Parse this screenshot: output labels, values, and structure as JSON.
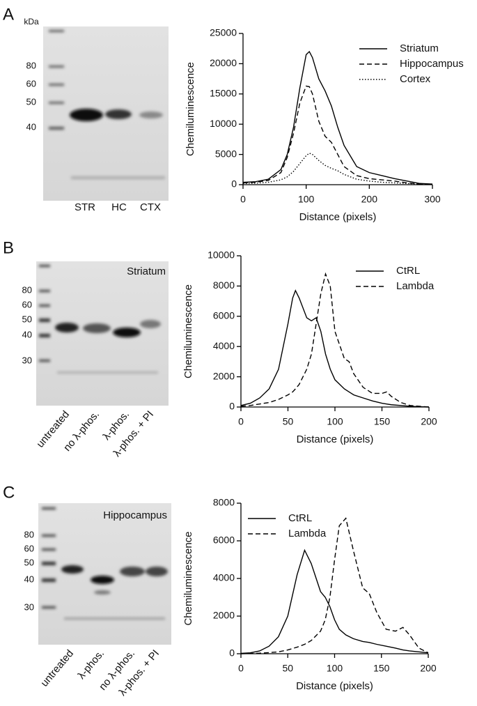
{
  "panel_labels": [
    "A",
    "B",
    "C"
  ],
  "blots": [
    {
      "unit": "kDa",
      "marker_labels": [
        "80",
        "60",
        "50",
        "40"
      ],
      "lane_labels": [
        "STR",
        "HC",
        "CTX"
      ]
    },
    {
      "title": "Striatum",
      "marker_labels": [
        "80",
        "60",
        "50",
        "40",
        "30"
      ],
      "lane_labels": [
        "untreated",
        "no λ-phos.",
        "λ-phos.",
        "λ-phos. + PI"
      ]
    },
    {
      "title": "Hippocampus",
      "marker_labels": [
        "80",
        "60",
        "50",
        "40",
        "30"
      ],
      "lane_labels": [
        "untreated",
        "λ-phos.",
        "no λ-phos.",
        "λ-phos. + PI"
      ]
    }
  ],
  "chart_data": [
    {
      "type": "line",
      "x_label": "Distance (pixels)",
      "y_label": "Chemiluminescence",
      "xlim": [
        0,
        300
      ],
      "xticks": [
        0,
        100,
        200,
        300
      ],
      "ylim": [
        0,
        25000
      ],
      "yticks": [
        0,
        5000,
        10000,
        15000,
        20000,
        25000
      ],
      "legend": "upper right",
      "x": [
        0,
        20,
        40,
        60,
        70,
        80,
        90,
        100,
        105,
        110,
        120,
        130,
        140,
        150,
        160,
        180,
        200,
        220,
        240,
        260,
        280,
        300
      ],
      "series": [
        {
          "name": "Striatum",
          "color": "#000000",
          "dash": "solid",
          "values": [
            400,
            500,
            900,
            2500,
            5000,
            9500,
            16000,
            21500,
            22000,
            21000,
            17500,
            15500,
            13000,
            9500,
            6500,
            3000,
            2000,
            1500,
            1000,
            600,
            200,
            100
          ]
        },
        {
          "name": "Hippocampus",
          "color": "#000000",
          "dash": "dashed",
          "values": [
            300,
            400,
            700,
            2000,
            4500,
            8500,
            13500,
            16300,
            16200,
            15000,
            10500,
            8000,
            7000,
            5000,
            3000,
            1500,
            1000,
            800,
            600,
            300,
            100,
            50
          ]
        },
        {
          "name": "Cortex",
          "color": "#000000",
          "dash": "dotted",
          "values": [
            200,
            250,
            400,
            800,
            1300,
            2200,
            3500,
            4800,
            5200,
            5000,
            4000,
            3200,
            2700,
            2300,
            1700,
            900,
            600,
            400,
            300,
            200,
            100,
            50
          ]
        }
      ]
    },
    {
      "type": "line",
      "x_label": "Distance (pixels)",
      "y_label": "Chemiluminescence",
      "xlim": [
        0,
        200
      ],
      "xticks": [
        0,
        50,
        100,
        150,
        200
      ],
      "ylim": [
        0,
        10000
      ],
      "yticks": [
        0,
        2000,
        4000,
        6000,
        8000,
        10000
      ],
      "legend": "upper right",
      "x": [
        0,
        10,
        20,
        30,
        40,
        50,
        55,
        58,
        62,
        70,
        75,
        80,
        85,
        90,
        95,
        100,
        110,
        115,
        120,
        130,
        140,
        150,
        155,
        160,
        170,
        180,
        190,
        200
      ],
      "series": [
        {
          "name": "CtRL",
          "color": "#000000",
          "dash": "solid",
          "values": [
            100,
            250,
            600,
            1200,
            2500,
            5500,
            7200,
            7700,
            7200,
            5900,
            5700,
            5900,
            5000,
            3500,
            2500,
            1800,
            1200,
            1000,
            800,
            600,
            400,
            250,
            200,
            150,
            100,
            50,
            20,
            0
          ]
        },
        {
          "name": "Lambda",
          "color": "#000000",
          "dash": "dashed",
          "values": [
            50,
            100,
            200,
            300,
            500,
            800,
            1000,
            1200,
            1500,
            2500,
            3500,
            5500,
            7500,
            8800,
            8000,
            5000,
            3200,
            3000,
            2200,
            1300,
            900,
            900,
            1000,
            700,
            300,
            100,
            50,
            0
          ]
        }
      ]
    },
    {
      "type": "line",
      "x_label": "Distance (pixels)",
      "y_label": "Chemiluminescence",
      "xlim": [
        0,
        200
      ],
      "xticks": [
        0,
        50,
        100,
        150,
        200
      ],
      "ylim": [
        0,
        8000
      ],
      "yticks": [
        0,
        2000,
        4000,
        6000,
        8000
      ],
      "legend": "upper left",
      "x": [
        0,
        10,
        20,
        30,
        40,
        50,
        60,
        68,
        75,
        85,
        90,
        95,
        100,
        105,
        112,
        120,
        130,
        137,
        145,
        155,
        165,
        173,
        180,
        190,
        200
      ],
      "series": [
        {
          "name": "CtRL",
          "color": "#000000",
          "dash": "solid",
          "values": [
            20,
            50,
            150,
            400,
            900,
            2000,
            4200,
            5500,
            4800,
            3300,
            3000,
            2500,
            1800,
            1300,
            1000,
            800,
            650,
            600,
            500,
            400,
            300,
            200,
            150,
            100,
            50
          ]
        },
        {
          "name": "Lambda",
          "color": "#000000",
          "dash": "dashed",
          "values": [
            0,
            10,
            30,
            60,
            100,
            200,
            350,
            500,
            700,
            1200,
            1800,
            3000,
            5000,
            6800,
            7200,
            5500,
            3500,
            3200,
            2200,
            1300,
            1200,
            1400,
            1000,
            300,
            50
          ]
        }
      ]
    }
  ]
}
